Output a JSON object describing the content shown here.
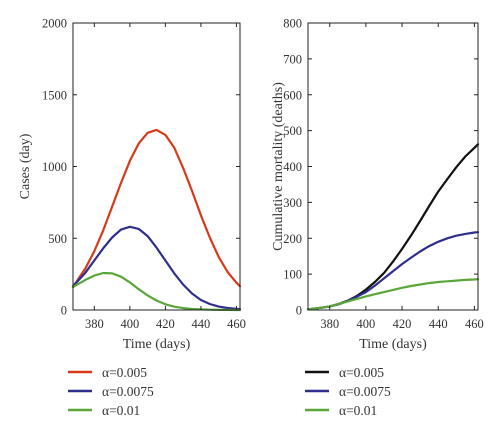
{
  "chart_data": [
    {
      "type": "line",
      "xlabel": "Time (days)",
      "ylabel": "Cases (day)",
      "xlim": [
        368,
        462
      ],
      "ylim": [
        0,
        2000
      ],
      "xticks": [
        380,
        400,
        420,
        440,
        460
      ],
      "yticks": [
        0,
        500,
        1000,
        1500,
        2000
      ],
      "series": [
        {
          "name": "α=0.005",
          "color": "#d63a1a",
          "x": [
            368,
            375,
            380,
            385,
            390,
            395,
            400,
            405,
            410,
            415,
            420,
            425,
            430,
            435,
            440,
            445,
            450,
            455,
            460,
            462
          ],
          "y": [
            160,
            290,
            410,
            555,
            720,
            885,
            1040,
            1160,
            1235,
            1255,
            1220,
            1130,
            990,
            830,
            660,
            505,
            370,
            265,
            190,
            165
          ]
        },
        {
          "name": "α=0.0075",
          "color": "#2e2f8c",
          "x": [
            368,
            375,
            380,
            385,
            390,
            395,
            400,
            405,
            410,
            415,
            420,
            425,
            430,
            435,
            440,
            445,
            450,
            455,
            460,
            462
          ],
          "y": [
            165,
            260,
            345,
            430,
            505,
            560,
            580,
            565,
            515,
            435,
            345,
            255,
            178,
            115,
            70,
            42,
            24,
            14,
            8,
            6
          ]
        },
        {
          "name": "α=0.01",
          "color": "#5aa63a",
          "x": [
            368,
            375,
            380,
            385,
            390,
            395,
            400,
            405,
            410,
            415,
            420,
            425,
            430,
            435,
            440,
            445,
            450,
            455,
            460,
            462
          ],
          "y": [
            160,
            210,
            240,
            258,
            255,
            232,
            192,
            145,
            102,
            66,
            40,
            23,
            13,
            7,
            4,
            2,
            1,
            1,
            0,
            0
          ]
        }
      ]
    },
    {
      "type": "line",
      "xlabel": "Time (days)",
      "ylabel": "Cumulative mortality (deaths)",
      "xlim": [
        368,
        462
      ],
      "ylim": [
        0,
        800
      ],
      "xticks": [
        380,
        400,
        420,
        440,
        460
      ],
      "yticks": [
        0,
        100,
        200,
        300,
        400,
        500,
        600,
        700,
        800
      ],
      "series": [
        {
          "name": "α=0.005",
          "color": "#111111",
          "x": [
            368,
            375,
            380,
            385,
            390,
            395,
            400,
            405,
            410,
            415,
            420,
            425,
            430,
            435,
            440,
            445,
            450,
            455,
            460,
            462
          ],
          "y": [
            2,
            6,
            10,
            17,
            26,
            39,
            57,
            78,
            103,
            135,
            170,
            208,
            248,
            290,
            330,
            365,
            398,
            428,
            452,
            462
          ]
        },
        {
          "name": "α=0.0075",
          "color": "#2e2f8c",
          "x": [
            368,
            375,
            380,
            385,
            390,
            395,
            400,
            405,
            410,
            415,
            420,
            425,
            430,
            435,
            440,
            445,
            450,
            455,
            460,
            462
          ],
          "y": [
            2,
            6,
            10,
            16,
            25,
            37,
            50,
            68,
            88,
            108,
            128,
            146,
            163,
            178,
            190,
            200,
            207,
            212,
            216,
            217
          ]
        },
        {
          "name": "α=0.01",
          "color": "#5aa63a",
          "x": [
            368,
            375,
            380,
            385,
            390,
            395,
            400,
            405,
            410,
            415,
            420,
            425,
            430,
            435,
            440,
            445,
            450,
            455,
            460,
            462
          ],
          "y": [
            2,
            6,
            10,
            17,
            24,
            31,
            38,
            44,
            50,
            56,
            62,
            67,
            71,
            75,
            78,
            80,
            82,
            84,
            85,
            86
          ]
        }
      ]
    }
  ]
}
